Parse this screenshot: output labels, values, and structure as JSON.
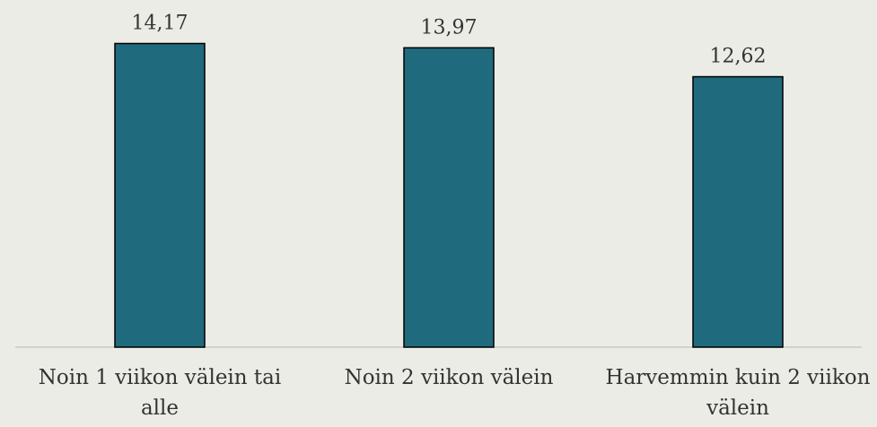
{
  "chart_data": {
    "type": "bar",
    "categories": [
      "Noin 1 viikon välein tai alle",
      "Noin 2 viikon välein",
      "Harvemmin kuin 2 viikon välein"
    ],
    "values": [
      14.17,
      13.97,
      12.62
    ],
    "value_labels": [
      "14,17",
      "13,97",
      "12,62"
    ],
    "color": "#1f6a7d",
    "ylim": [
      0,
      16.2
    ]
  }
}
